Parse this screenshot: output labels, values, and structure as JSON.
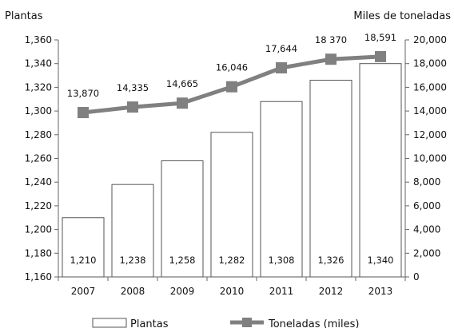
{
  "chart_data": {
    "type": "bar",
    "categories": [
      "2007",
      "2008",
      "2009",
      "2010",
      "2011",
      "2012",
      "2013"
    ],
    "left_axis": {
      "label": "Plantas",
      "range": [
        1160,
        1360
      ],
      "ticks": [
        "1,160",
        "1,180",
        "1,200",
        "1,220",
        "1,240",
        "1,260",
        "1,280",
        "1,300",
        "1,320",
        "1,340",
        "1,360"
      ]
    },
    "right_axis": {
      "label": "Miles de toneladas",
      "range": [
        0,
        20000
      ],
      "ticks": [
        "0",
        "2,000",
        "4,000",
        "6,000",
        "8,000",
        "10,000",
        "12,000",
        "14,000",
        "16,000",
        "18,000",
        "20,000"
      ]
    },
    "series": [
      {
        "name": "Plantas",
        "type": "bar",
        "axis": "left",
        "values": [
          1210,
          1238,
          1258,
          1282,
          1308,
          1326,
          1340
        ],
        "labels": [
          "1,210",
          "1,238",
          "1,258",
          "1,282",
          "1,308",
          "1,326",
          "1,340"
        ],
        "color": "#ffffff",
        "stroke": "#555555"
      },
      {
        "name": "Toneladas (miles)",
        "type": "line",
        "axis": "right",
        "values": [
          13870,
          14335,
          14665,
          16046,
          17644,
          18370,
          18591
        ],
        "labels": [
          "13,870",
          "14,335",
          "14,665",
          "16,046",
          "17,644",
          "18 370",
          "18,591"
        ],
        "color": "#808080"
      }
    ],
    "grid": false,
    "legend_position": "bottom"
  }
}
